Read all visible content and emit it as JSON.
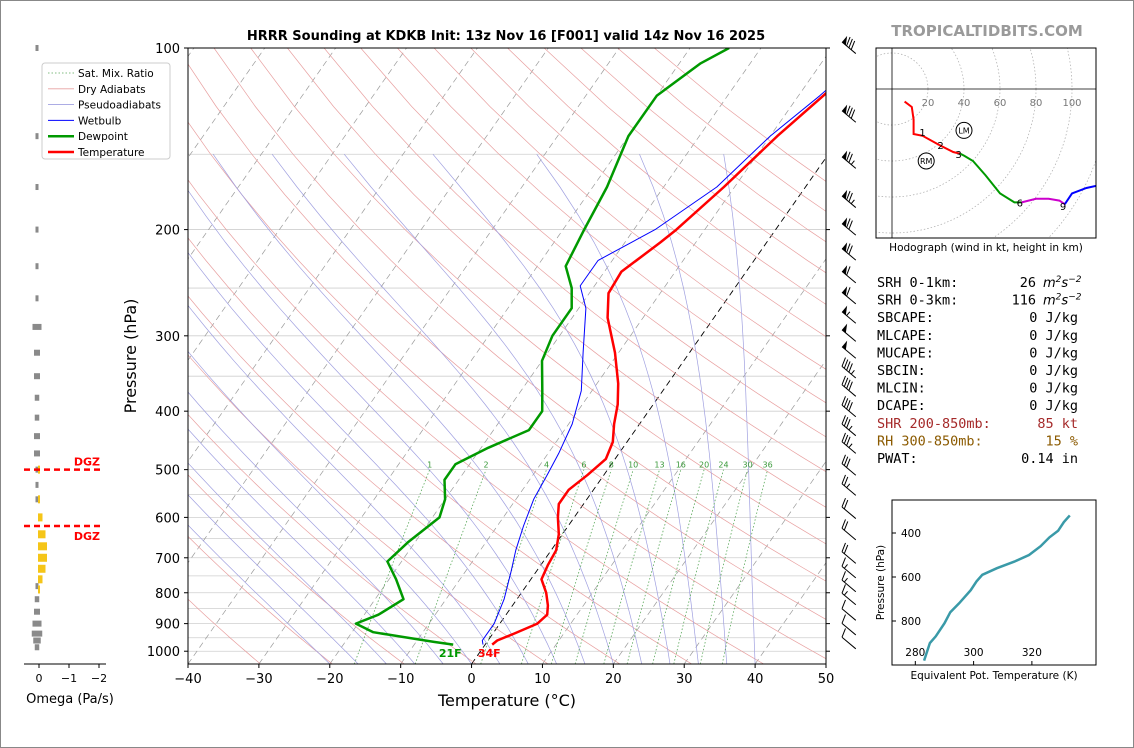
{
  "title": "HRRR Sounding at KDKB Init: 13z Nov 16 [F001] valid 14z Nov 16 2025",
  "watermark": "TROPICALTIDBITS.COM",
  "chart_data": [
    {
      "type": "line",
      "name": "skew-t",
      "xlabel": "Temperature (°C)",
      "ylabel": "Pressure (hPa)",
      "xlim": [
        -40,
        50
      ],
      "ylim": [
        1050,
        100
      ],
      "y_scale": "log",
      "x_ticks": [
        -40,
        -30,
        -20,
        -10,
        0,
        10,
        20,
        30,
        40,
        50
      ],
      "x_tick_labels": [
        "−40",
        "−30",
        "−20",
        "−10",
        "0",
        "10",
        "20",
        "30",
        "40",
        "50"
      ],
      "y_ticks": [
        100,
        200,
        300,
        400,
        500,
        600,
        700,
        800,
        900,
        1000
      ],
      "mixing_ratio_labels": [
        "1",
        "2",
        "4",
        "6",
        "8",
        "10",
        "13",
        "16",
        "20",
        "24",
        "30",
        "36"
      ],
      "legend": [
        "Sat. Mix. Ratio",
        "Dry Adiabats",
        "Pseudoadiabats",
        "Wetbulb",
        "Dewpoint",
        "Temperature"
      ],
      "legend_position": "upper-left",
      "surface_labels": {
        "dewpoint": "21F",
        "temperature": "34F"
      },
      "series": [
        {
          "name": "Temperature",
          "color": "#ff0000",
          "points": [
            [
              1,
              975
            ],
            [
              1.3,
              960
            ],
            [
              3,
              935
            ],
            [
              5.3,
              900
            ],
            [
              5.8,
              870
            ],
            [
              5,
              840
            ],
            [
              3.5,
              800
            ],
            [
              1.5,
              760
            ],
            [
              1,
              720
            ],
            [
              0.7,
              680
            ],
            [
              -0.5,
              640
            ],
            [
              -2.3,
              600
            ],
            [
              -3.5,
              570
            ],
            [
              -3.5,
              540
            ],
            [
              -2.3,
              510
            ],
            [
              -1.3,
              480
            ],
            [
              -2,
              450
            ],
            [
              -3.6,
              420
            ],
            [
              -5,
              390
            ],
            [
              -7,
              360
            ],
            [
              -10.5,
              320
            ],
            [
              -15,
              280
            ],
            [
              -17.3,
              255
            ],
            [
              -17.6,
              235
            ],
            [
              -15,
              210
            ],
            [
              -14,
              200
            ],
            [
              -11.5,
              170
            ],
            [
              -9,
              140
            ],
            [
              -6.5,
              120
            ],
            [
              -4.5,
              106
            ],
            [
              -3.7,
              100
            ]
          ]
        },
        {
          "name": "Dewpoint",
          "color": "#009900",
          "points": [
            [
              -4.5,
              975
            ],
            [
              -7.5,
              965
            ],
            [
              -17,
              930
            ],
            [
              -20.3,
              900
            ],
            [
              -18,
              870
            ],
            [
              -16,
              820
            ],
            [
              -19,
              760
            ],
            [
              -22,
              710
            ],
            [
              -21,
              660
            ],
            [
              -19,
              600
            ],
            [
              -20,
              560
            ],
            [
              -22,
              520
            ],
            [
              -22,
              490
            ],
            [
              -19,
              460
            ],
            [
              -15,
              430
            ],
            [
              -15,
              400
            ],
            [
              -17,
              370
            ],
            [
              -20,
              330
            ],
            [
              -21,
              300
            ],
            [
              -21,
              270
            ],
            [
              -23,
              250
            ],
            [
              -26,
              230
            ],
            [
              -27,
              200
            ],
            [
              -28,
              170
            ],
            [
              -30,
              140
            ],
            [
              -30,
              120
            ],
            [
              -27,
              106
            ],
            [
              -24.5,
              100
            ]
          ]
        },
        {
          "name": "Wetbulb",
          "color": "#0000ff",
          "points": [
            [
              -0.3,
              975
            ],
            [
              -0.8,
              960
            ],
            [
              -0.8,
              900
            ],
            [
              -1.8,
              820
            ],
            [
              -3.5,
              740
            ],
            [
              -5,
              680
            ],
            [
              -6.3,
              620
            ],
            [
              -7.5,
              560
            ],
            [
              -8,
              510
            ],
            [
              -8.5,
              470
            ],
            [
              -9.5,
              420
            ],
            [
              -11.5,
              370
            ],
            [
              -15,
              320
            ],
            [
              -19,
              270
            ],
            [
              -22,
              248
            ],
            [
              -22,
              225
            ],
            [
              -17,
              200
            ],
            [
              -12.5,
              170
            ],
            [
              -10,
              140
            ],
            [
              -7,
              120
            ],
            [
              -5,
              106
            ],
            [
              -4,
              100
            ]
          ]
        }
      ]
    },
    {
      "type": "bar",
      "name": "omega",
      "xlabel": "Omega (Pa/s)",
      "x_ticks": [
        0,
        -1,
        -2
      ],
      "x_tick_labels": [
        "0",
        "−1",
        "−2"
      ],
      "dgz_label": "DGZ",
      "dgz_pressures": [
        500,
        620
      ],
      "bars_gray": [
        [
          100,
          0.1
        ],
        [
          140,
          0.1
        ],
        [
          170,
          0.1
        ],
        [
          200,
          0.1
        ],
        [
          230,
          0.05
        ],
        [
          260,
          0.1
        ],
        [
          290,
          0.3
        ],
        [
          320,
          0.2
        ],
        [
          350,
          0.2
        ],
        [
          380,
          0.15
        ],
        [
          410,
          0.15
        ],
        [
          440,
          0.2
        ],
        [
          470,
          0.2
        ],
        [
          500,
          0.1
        ],
        [
          530,
          0.05
        ],
        [
          560,
          0.02
        ],
        [
          780,
          0.05
        ],
        [
          820,
          0.15
        ],
        [
          860,
          0.2
        ],
        [
          900,
          0.3
        ],
        [
          935,
          0.35
        ],
        [
          960,
          0.25
        ],
        [
          985,
          0.15
        ]
      ],
      "bars_yellow": [
        [
          500,
          0.02
        ],
        [
          560,
          0.05
        ],
        [
          600,
          0.15
        ],
        [
          640,
          0.25
        ],
        [
          670,
          0.3
        ],
        [
          700,
          0.3
        ],
        [
          730,
          0.25
        ],
        [
          760,
          0.15
        ],
        [
          790,
          0.05
        ]
      ]
    },
    {
      "type": "line",
      "name": "hodograph",
      "caption": "Hodograph (wind in kt, height in km)",
      "ring_labels": [
        "20",
        "40",
        "60",
        "80",
        "100"
      ],
      "markers": [
        "LM",
        "RM"
      ],
      "height_labels": [
        "1",
        "2",
        "3",
        "6",
        "9"
      ],
      "series": [
        {
          "color": "#ff0000",
          "points": [
            [
              7,
              -7
            ],
            [
              11,
              -10
            ],
            [
              12,
              -17
            ],
            [
              12,
              -25
            ],
            [
              17,
              -26
            ],
            [
              26,
              -31
            ],
            [
              34,
              -35
            ],
            [
              38,
              -36
            ]
          ]
        },
        {
          "color": "#009900",
          "points": [
            [
              38,
              -36
            ],
            [
              40,
              -37
            ],
            [
              45,
              -40
            ],
            [
              52,
              -48
            ],
            [
              60,
              -58
            ],
            [
              68,
              -63
            ],
            [
              72,
              -63
            ]
          ]
        },
        {
          "color": "#cc00cc",
          "points": [
            [
              72,
              -63
            ],
            [
              80,
              -61
            ],
            [
              87,
              -61
            ],
            [
              93,
              -62
            ],
            [
              96,
              -64
            ]
          ]
        },
        {
          "color": "#0000ff",
          "points": [
            [
              96,
              -64
            ],
            [
              100,
              -58
            ],
            [
              108,
              -55
            ],
            [
              117,
              -53
            ]
          ]
        }
      ]
    },
    {
      "type": "line",
      "name": "theta-e",
      "xlabel": "Equivalent Pot. Temperature (K)",
      "ylabel": "Pressure (hPa)",
      "x_ticks": [
        280,
        300,
        320
      ],
      "y_ticks": [
        400,
        600,
        800
      ],
      "xlim": [
        272,
        342
      ],
      "ylim": [
        1000,
        250
      ],
      "color": "#3a9aa8",
      "points": [
        [
          283,
          980
        ],
        [
          285,
          900
        ],
        [
          287,
          870
        ],
        [
          290,
          810
        ],
        [
          292,
          760
        ],
        [
          295,
          720
        ],
        [
          299,
          660
        ],
        [
          301,
          620
        ],
        [
          303,
          590
        ],
        [
          308,
          560
        ],
        [
          314,
          530
        ],
        [
          319,
          500
        ],
        [
          323,
          460
        ],
        [
          326,
          420
        ],
        [
          329,
          390
        ],
        [
          331,
          350
        ],
        [
          333,
          320
        ]
      ]
    }
  ],
  "wind_barbs": [
    {
      "p": 100,
      "kt": 80
    },
    {
      "p": 130,
      "kt": 80
    },
    {
      "p": 155,
      "kt": 75
    },
    {
      "p": 180,
      "kt": 75
    },
    {
      "p": 200,
      "kt": 70
    },
    {
      "p": 220,
      "kt": 70
    },
    {
      "p": 240,
      "kt": 60
    },
    {
      "p": 260,
      "kt": 60
    },
    {
      "p": 280,
      "kt": 55
    },
    {
      "p": 300,
      "kt": 50
    },
    {
      "p": 320,
      "kt": 50
    },
    {
      "p": 345,
      "kt": 45
    },
    {
      "p": 370,
      "kt": 40
    },
    {
      "p": 400,
      "kt": 40
    },
    {
      "p": 430,
      "kt": 35
    },
    {
      "p": 460,
      "kt": 35
    },
    {
      "p": 500,
      "kt": 30
    },
    {
      "p": 540,
      "kt": 25
    },
    {
      "p": 590,
      "kt": 20
    },
    {
      "p": 640,
      "kt": 20
    },
    {
      "p": 700,
      "kt": 20
    },
    {
      "p": 740,
      "kt": 15
    },
    {
      "p": 780,
      "kt": 15
    },
    {
      "p": 820,
      "kt": 15
    },
    {
      "p": 870,
      "kt": 10
    },
    {
      "p": 920,
      "kt": 10
    },
    {
      "p": 970,
      "kt": 10
    }
  ],
  "indices": [
    {
      "label": "SRH 0-1km:",
      "value": "26",
      "unit": "m2s-2",
      "color": "#000000"
    },
    {
      "label": "SRH 0-3km:",
      "value": "116",
      "unit": "m2s-2",
      "color": "#000000"
    },
    {
      "label": "SBCAPE:",
      "value": "0 J/kg",
      "unit": "",
      "color": "#000000"
    },
    {
      "label": "MLCAPE:",
      "value": "0 J/kg",
      "unit": "",
      "color": "#000000"
    },
    {
      "label": "MUCAPE:",
      "value": "0 J/kg",
      "unit": "",
      "color": "#000000"
    },
    {
      "label": "SBCIN:",
      "value": "0 J/kg",
      "unit": "",
      "color": "#000000"
    },
    {
      "label": "MLCIN:",
      "value": "0 J/kg",
      "unit": "",
      "color": "#000000"
    },
    {
      "label": "DCAPE:",
      "value": "0 J/kg",
      "unit": "",
      "color": "#000000"
    },
    {
      "label": "SHR 200-850mb:",
      "value": "85 kt",
      "unit": "",
      "color": "#a52a2a"
    },
    {
      "label": "RH 300-850mb:",
      "value": "15 %",
      "unit": "",
      "color": "#8b5a00"
    },
    {
      "label": "PWAT:",
      "value": "0.14 in",
      "unit": "",
      "color": "#000000"
    }
  ]
}
